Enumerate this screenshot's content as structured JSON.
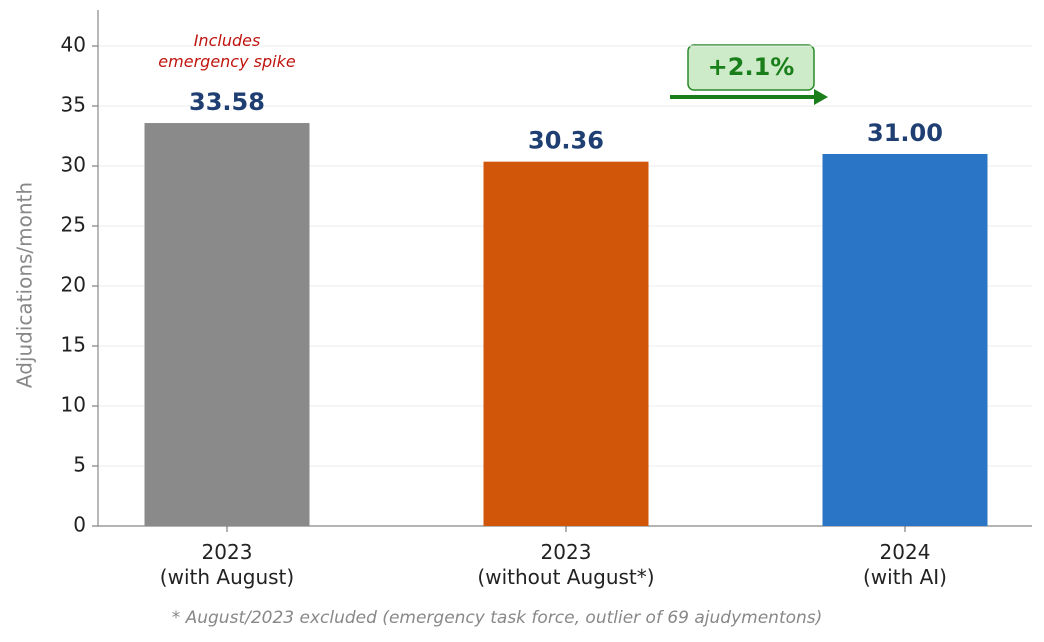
{
  "chart_data": {
    "type": "bar",
    "ylabel": "Adjudications/month",
    "categories": [
      "2023\n(with August)",
      "2023\n(without August*)",
      "2024\n(with AI)"
    ],
    "values": [
      33.58,
      30.36,
      31.0
    ],
    "value_labels": [
      "33.58",
      "30.36",
      "31.00"
    ],
    "colors": [
      "#8a8a8a",
      "#d2560a",
      "#2a75c6"
    ],
    "ylim": [
      0,
      43
    ],
    "yticks": [
      0,
      5,
      10,
      15,
      20,
      25,
      30,
      35,
      40
    ],
    "grid": true,
    "annotations": {
      "note": "Includes\nemergency spike",
      "change": "+2.1%"
    },
    "footnote": "* August/2023 excluded (emergency task force, outlier of 69 ajudymentons)"
  }
}
